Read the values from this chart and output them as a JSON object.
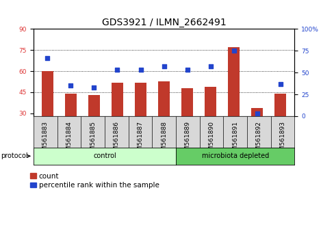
{
  "title": "GDS3921 / ILMN_2662491",
  "samples": [
    "GSM561883",
    "GSM561884",
    "GSM561885",
    "GSM561886",
    "GSM561887",
    "GSM561888",
    "GSM561889",
    "GSM561890",
    "GSM561891",
    "GSM561892",
    "GSM561893"
  ],
  "counts": [
    60,
    44,
    43,
    52,
    52,
    53,
    48,
    49,
    77,
    34,
    44
  ],
  "percentile_ranks": [
    67,
    35,
    33,
    53,
    53,
    57,
    53,
    57,
    75,
    3,
    37
  ],
  "n_control": 6,
  "n_microbiota": 5,
  "bar_color": "#c0392b",
  "dot_color": "#2244cc",
  "left_ylim": [
    28,
    90
  ],
  "right_ylim": [
    0,
    100
  ],
  "left_yticks": [
    30,
    45,
    60,
    75,
    90
  ],
  "right_yticks": [
    0,
    25,
    50,
    75,
    100
  ],
  "grid_values": [
    45,
    60,
    75
  ],
  "control_color": "#ccffcc",
  "microbiota_color": "#66cc66",
  "plot_bg": "#ffffff",
  "title_fontsize": 10,
  "tick_fontsize": 6.5,
  "label_fontsize": 7,
  "legend_fontsize": 7.5,
  "protocol_label": "protocol",
  "control_label": "control",
  "microbiota_label": "microbiota depleted",
  "count_legend": "count",
  "percentile_legend": "percentile rank within the sample"
}
